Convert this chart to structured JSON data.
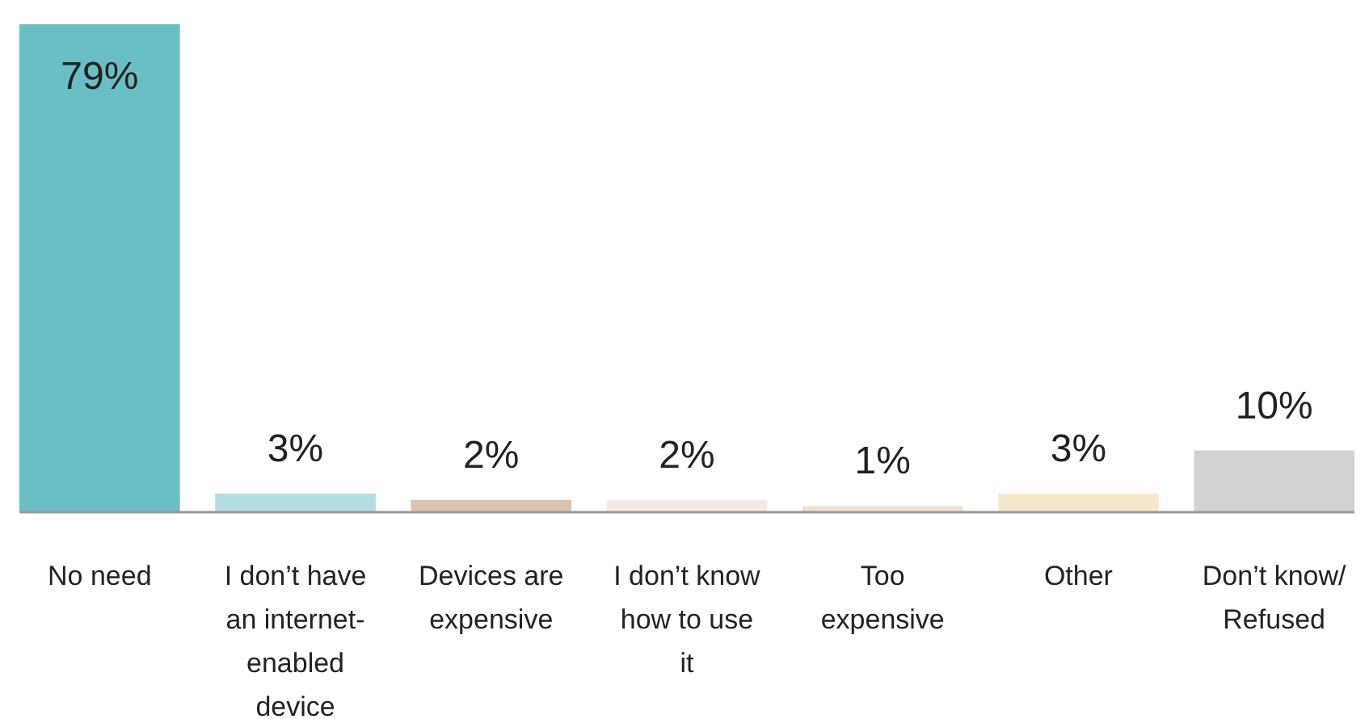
{
  "chart_data": {
    "type": "bar",
    "categories": [
      "No need",
      "I don’t have an internet-enabled device",
      "Devices are expensive",
      "I don’t know how to use it",
      "Too expensive",
      "Other",
      "Don’t know/ Refused"
    ],
    "values": [
      79,
      3,
      2,
      2,
      1,
      3,
      10
    ],
    "value_labels": [
      "79%",
      "3%",
      "2%",
      "2%",
      "1%",
      "3%",
      "10%"
    ],
    "colors": [
      "#69bfc4",
      "#b2dde1",
      "#dcc1ac",
      "#f4ebe5",
      "#f1dfd2",
      "#f5e7cb",
      "#d1d2d4"
    ]
  }
}
